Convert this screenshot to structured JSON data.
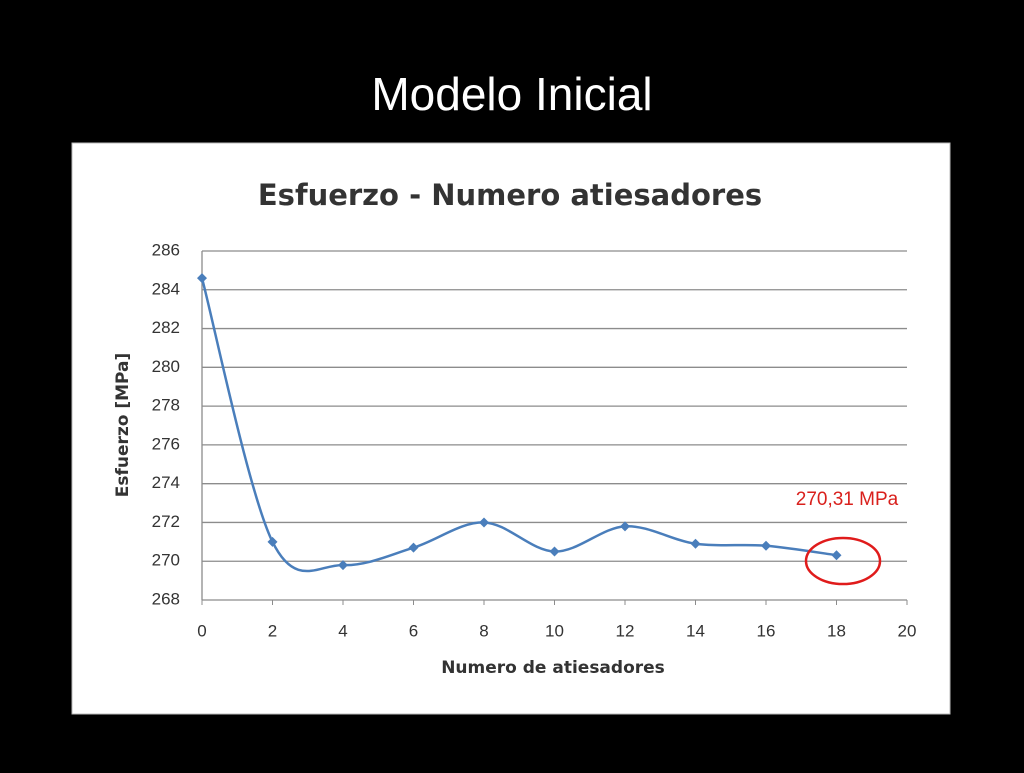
{
  "slide": {
    "title": "Modelo Inicial"
  },
  "chart_data": {
    "type": "line",
    "title": "Esfuerzo - Numero atiesadores",
    "x_label": "Numero de atiesadores",
    "y_label": "Esfuerzo [MPa]",
    "annotation": "270,31 MPa",
    "x": [
      0,
      2,
      4,
      6,
      8,
      10,
      12,
      14,
      16,
      18
    ],
    "series": [
      {
        "name": "Esfuerzo",
        "color": "#4a7ebb",
        "values": [
          284.6,
          271.0,
          269.8,
          270.7,
          272.0,
          270.5,
          271.8,
          270.9,
          270.8,
          270.31
        ]
      }
    ],
    "xlim": [
      0,
      20
    ],
    "xticks": [
      0,
      2,
      4,
      6,
      8,
      10,
      12,
      14,
      16,
      18,
      20
    ],
    "ylim": [
      268,
      286
    ],
    "yticks": [
      268,
      270,
      272,
      274,
      276,
      278,
      280,
      282,
      284,
      286
    ],
    "grid": true
  }
}
